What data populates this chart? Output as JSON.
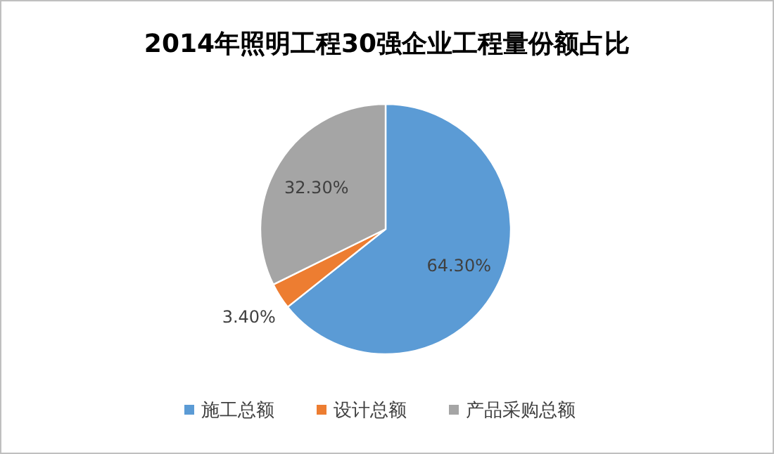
{
  "chart_data": {
    "type": "pie",
    "title": "2014年照明工程30强企业工程量份额占比",
    "categories": [
      "施工总额",
      "设计总额",
      "产品采购总额"
    ],
    "values": [
      64.3,
      3.4,
      32.3
    ],
    "colors": [
      "#5b9bd5",
      "#ed7d31",
      "#a5a5a5"
    ],
    "value_labels": [
      "64.30%",
      "3.40%",
      "32.30%"
    ],
    "legend": "bottom"
  }
}
